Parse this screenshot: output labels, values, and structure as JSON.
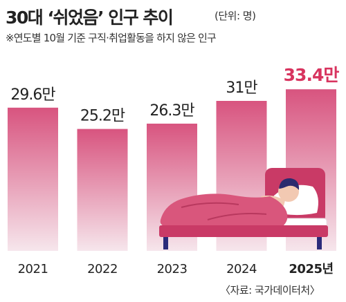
{
  "title": "30대 ‘쉬었음’ 인구 추이",
  "unit_note": "(단위: 명)",
  "subtitle": "※연도별 10월 기준 구직·취업활동을 하지 않은 인구",
  "source": "〈자료: 국가데이터처〉",
  "colors": {
    "bar_top": "#d8547f",
    "bar_bottom": "#f6e6ec",
    "highlight": "#d8345f",
    "bed_frame": "#c93a66",
    "blanket": "#d9567c",
    "leg": "#2b2b7a"
  },
  "chart_data": {
    "type": "bar",
    "categories": [
      "2021",
      "2022",
      "2023",
      "2024",
      "2025년"
    ],
    "values": [
      29.6,
      25.2,
      26.3,
      31,
      33.4
    ],
    "value_labels": [
      "29.6만",
      "25.2만",
      "26.3만",
      "31만",
      "33.4만"
    ],
    "highlight_index": 4,
    "illustration": "sleeping-person-in-bed"
  }
}
